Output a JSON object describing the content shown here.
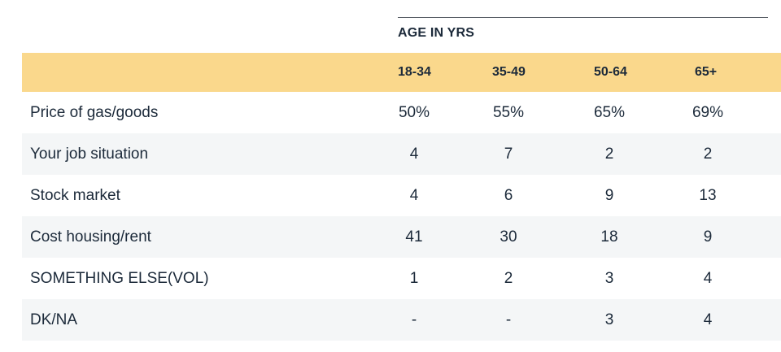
{
  "chart_data": {
    "type": "table",
    "column_group_label": "AGE IN YRS",
    "columns": [
      "18-34",
      "35-49",
      "50-64",
      "65+"
    ],
    "rows": [
      {
        "label": "Price of gas/goods",
        "values": [
          "50%",
          "55%",
          "65%",
          "69%"
        ]
      },
      {
        "label": "Your job situation",
        "values": [
          "4",
          "7",
          "2",
          "2"
        ]
      },
      {
        "label": "Stock market",
        "values": [
          "4",
          "6",
          "9",
          "13"
        ]
      },
      {
        "label": "Cost housing/rent",
        "values": [
          "41",
          "30",
          "18",
          "9"
        ]
      },
      {
        "label": "SOMETHING ELSE(VOL)",
        "values": [
          "1",
          "2",
          "3",
          "4"
        ]
      },
      {
        "label": "DK/NA",
        "values": [
          "-",
          "-",
          "3",
          "4"
        ]
      }
    ]
  },
  "colors": {
    "header_background": "#fad88c",
    "shaded_row_background": "#f4f6f7",
    "text": "#1c2a3a"
  }
}
